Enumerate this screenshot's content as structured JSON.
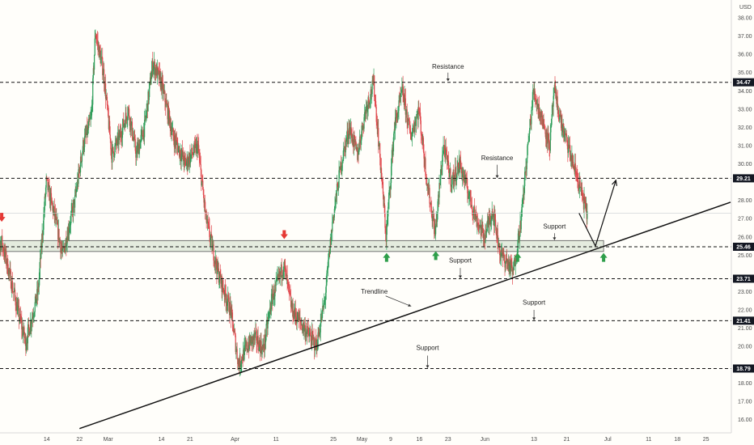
{
  "chart_data": {
    "type": "candlestick",
    "currency": "USD",
    "xlim": [
      "2022-02-01",
      "2022-07-31"
    ],
    "ylim": [
      15.0,
      38.8
    ],
    "x_ticks": [
      {
        "date": "2022-02-14",
        "label": "14"
      },
      {
        "date": "2022-02-22",
        "label": "22"
      },
      {
        "date": "2022-03-01",
        "label": "Mar"
      },
      {
        "date": "2022-03-14",
        "label": "14"
      },
      {
        "date": "2022-03-21",
        "label": "21"
      },
      {
        "date": "2022-04-01",
        "label": "Apr"
      },
      {
        "date": "2022-04-11",
        "label": "11"
      },
      {
        "date": "2022-04-25",
        "label": "25"
      },
      {
        "date": "2022-05-02",
        "label": "May"
      },
      {
        "date": "2022-05-09",
        "label": "9"
      },
      {
        "date": "2022-05-16",
        "label": "16"
      },
      {
        "date": "2022-05-23",
        "label": "23"
      },
      {
        "date": "2022-06-01",
        "label": "Jun"
      },
      {
        "date": "2022-06-13",
        "label": "13"
      },
      {
        "date": "2022-06-21",
        "label": "21"
      },
      {
        "date": "2022-07-01",
        "label": "Jul"
      },
      {
        "date": "2022-07-11",
        "label": "11"
      },
      {
        "date": "2022-07-18",
        "label": "18"
      },
      {
        "date": "2022-07-25",
        "label": "25"
      }
    ],
    "y_ticks": [
      "16.00",
      "17.00",
      "18.00",
      "19.00",
      "20.00",
      "21.00",
      "22.00",
      "23.00",
      "24.00",
      "25.00",
      "26.00",
      "27.00",
      "28.00",
      "29.00",
      "30.00",
      "31.00",
      "32.00",
      "33.00",
      "34.00",
      "35.00",
      "36.00",
      "37.00",
      "38.00"
    ],
    "key_levels": [
      {
        "value": 34.47,
        "label": "34.47"
      },
      {
        "value": 29.21,
        "label": "29.21"
      },
      {
        "value": 25.46,
        "label": "25.46"
      },
      {
        "value": 23.71,
        "label": "23.71"
      },
      {
        "value": 21.41,
        "label": "21.41"
      },
      {
        "value": 18.79,
        "label": "18.79"
      }
    ],
    "current_price": 27.3,
    "support_zone": {
      "from_date": "2022-02-01",
      "to_date": "2022-06-30",
      "low": 25.2,
      "high": 25.8
    },
    "trendline": {
      "points": [
        [
          "2022-02-22",
          15.5
        ],
        [
          "2022-07-31",
          27.9
        ]
      ]
    },
    "projection": {
      "points": [
        [
          "2022-06-24",
          27.3
        ],
        [
          "2022-06-28",
          25.5
        ],
        [
          "2022-07-03",
          29.1
        ]
      ]
    },
    "annotations": [
      {
        "text": "Resistance",
        "date": "2022-05-23",
        "value": 35.2,
        "pointer": [
          34.5,
          35.0
        ]
      },
      {
        "text": "Resistance",
        "date": "2022-06-04",
        "value": 30.2,
        "pointer": [
          29.2,
          29.95
        ]
      },
      {
        "text": "Support",
        "date": "2022-06-18",
        "value": 26.45,
        "pointer": [
          25.8,
          26.2
        ]
      },
      {
        "text": "Support",
        "date": "2022-05-26",
        "value": 24.6,
        "pointer": [
          23.71,
          24.3
        ]
      },
      {
        "text": "Trendline",
        "date": "2022-05-05",
        "value": 22.9,
        "pointer_to": [
          "2022-05-14",
          22.2
        ]
      },
      {
        "text": "Support",
        "date": "2022-06-13",
        "value": 22.3,
        "pointer": [
          21.41,
          22.0
        ]
      },
      {
        "text": "Support",
        "date": "2022-05-18",
        "value": 19.8,
        "pointer": [
          18.79,
          19.5
        ]
      }
    ],
    "markers": [
      {
        "type": "down",
        "color": "#e53935",
        "date": "2022-02-03",
        "value": 27.05
      },
      {
        "type": "down",
        "color": "#e53935",
        "date": "2022-04-13",
        "value": 26.1
      },
      {
        "type": "up",
        "color": "#2e9e4a",
        "date": "2022-05-08",
        "value": 24.9
      },
      {
        "type": "up",
        "color": "#2e9e4a",
        "date": "2022-05-20",
        "value": 25.0
      },
      {
        "type": "up",
        "color": "#2e9e4a",
        "date": "2022-06-09",
        "value": 24.9
      },
      {
        "type": "up",
        "color": "#2e9e4a",
        "date": "2022-06-30",
        "value": 24.9
      }
    ],
    "price_path": [
      [
        "2022-02-01",
        24.0
      ],
      [
        "2022-02-03",
        25.8
      ],
      [
        "2022-02-05",
        24.0
      ],
      [
        "2022-02-07",
        22.0
      ],
      [
        "2022-02-09",
        20.2
      ],
      [
        "2022-02-12",
        23.0
      ],
      [
        "2022-02-14",
        29.0
      ],
      [
        "2022-02-16",
        27.2
      ],
      [
        "2022-02-18",
        25.0
      ],
      [
        "2022-02-21",
        28.0
      ],
      [
        "2022-02-23",
        31.0
      ],
      [
        "2022-02-25",
        32.5
      ],
      [
        "2022-02-26",
        37.2
      ],
      [
        "2022-02-28",
        35.0
      ],
      [
        "2022-03-02",
        30.5
      ],
      [
        "2022-03-04",
        31.5
      ],
      [
        "2022-03-06",
        33.0
      ],
      [
        "2022-03-08",
        30.5
      ],
      [
        "2022-03-10",
        32.0
      ],
      [
        "2022-03-12",
        35.5
      ],
      [
        "2022-03-14",
        34.5
      ],
      [
        "2022-03-17",
        31.5
      ],
      [
        "2022-03-20",
        30.0
      ],
      [
        "2022-03-23",
        31.0
      ],
      [
        "2022-03-25",
        27.0
      ],
      [
        "2022-03-28",
        24.0
      ],
      [
        "2022-03-31",
        22.0
      ],
      [
        "2022-04-02",
        19.0
      ],
      [
        "2022-04-04",
        20.0
      ],
      [
        "2022-04-06",
        20.5
      ],
      [
        "2022-04-08",
        19.8
      ],
      [
        "2022-04-10",
        22.5
      ],
      [
        "2022-04-13",
        24.5
      ],
      [
        "2022-04-15",
        22.0
      ],
      [
        "2022-04-18",
        21.0
      ],
      [
        "2022-04-21",
        20.0
      ],
      [
        "2022-04-23",
        22.5
      ],
      [
        "2022-04-25",
        27.0
      ],
      [
        "2022-04-27",
        30.0
      ],
      [
        "2022-04-29",
        32.0
      ],
      [
        "2022-05-01",
        30.5
      ],
      [
        "2022-05-03",
        33.0
      ],
      [
        "2022-05-05",
        34.4
      ],
      [
        "2022-05-07",
        29.0
      ],
      [
        "2022-05-08",
        26.0
      ],
      [
        "2022-05-10",
        32.0
      ],
      [
        "2022-05-12",
        34.0
      ],
      [
        "2022-05-14",
        31.5
      ],
      [
        "2022-05-16",
        33.0
      ],
      [
        "2022-05-18",
        29.0
      ],
      [
        "2022-05-20",
        26.2
      ],
      [
        "2022-05-22",
        31.0
      ],
      [
        "2022-05-24",
        29.0
      ],
      [
        "2022-05-26",
        30.0
      ],
      [
        "2022-05-28",
        28.5
      ],
      [
        "2022-05-30",
        27.0
      ],
      [
        "2022-06-01",
        26.0
      ],
      [
        "2022-06-03",
        27.5
      ],
      [
        "2022-06-05",
        25.0
      ],
      [
        "2022-06-07",
        24.5
      ],
      [
        "2022-06-08",
        24.0
      ],
      [
        "2022-06-10",
        27.0
      ],
      [
        "2022-06-11",
        29.5
      ],
      [
        "2022-06-13",
        34.0
      ],
      [
        "2022-06-15",
        32.5
      ],
      [
        "2022-06-17",
        31.0
      ],
      [
        "2022-06-18",
        34.0
      ],
      [
        "2022-06-20",
        32.0
      ],
      [
        "2022-06-22",
        30.5
      ],
      [
        "2022-06-24",
        29.0
      ],
      [
        "2022-06-26",
        27.3
      ]
    ]
  }
}
